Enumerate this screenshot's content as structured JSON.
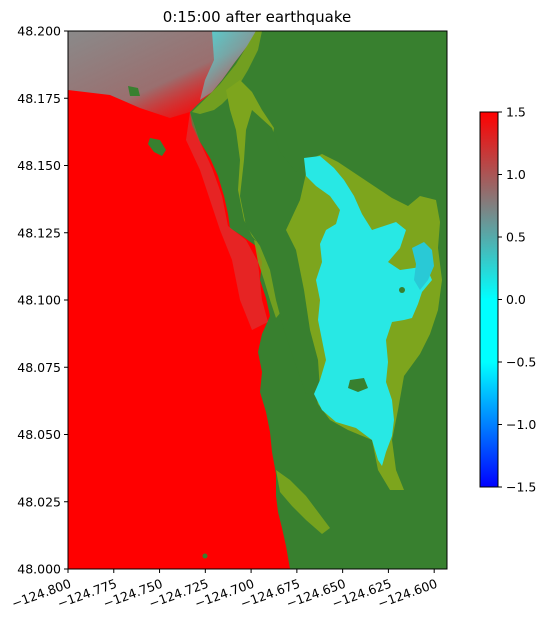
{
  "chart_data": {
    "type": "heatmap",
    "title": "0:15:00 after earthquake",
    "xlabel": "",
    "ylabel": "",
    "x_ticks": [
      "−124.800",
      "−124.775",
      "−124.750",
      "−124.725",
      "−124.700",
      "−124.675",
      "−124.650",
      "−124.625",
      "−124.600"
    ],
    "x_tick_values": [
      -124.8,
      -124.775,
      -124.75,
      -124.725,
      -124.7,
      -124.675,
      -124.65,
      -124.625,
      -124.6
    ],
    "y_ticks": [
      "48.000",
      "48.025",
      "48.050",
      "48.075",
      "48.100",
      "48.125",
      "48.150",
      "48.175",
      "48.200"
    ],
    "y_tick_values": [
      48.0,
      48.025,
      48.05,
      48.075,
      48.1,
      48.125,
      48.15,
      48.175,
      48.2
    ],
    "xlim": [
      -124.8,
      -124.593
    ],
    "ylim": [
      48.0,
      48.2
    ],
    "colorbar": {
      "ticks": [
        "−1.5",
        "−1.0",
        "−0.5",
        "0.0",
        "0.5",
        "1.0",
        "1.5"
      ],
      "tick_values": [
        -1.5,
        -1.0,
        -0.5,
        0.0,
        0.5,
        1.0,
        1.5
      ],
      "range": [
        -1.5,
        1.5
      ],
      "colors": [
        "#0000ff",
        "#00ffff",
        "#808080",
        "#ff0000"
      ]
    },
    "colors": {
      "land_dark": "#38802f",
      "land_light": "#7da51d",
      "ocean_high": "#ff0000",
      "ocean_mid": "#9a7a7a",
      "ocean_grey": "#8a8a8a",
      "lake": "#28e8e4",
      "lake_edge": "#29c9d6"
    }
  }
}
